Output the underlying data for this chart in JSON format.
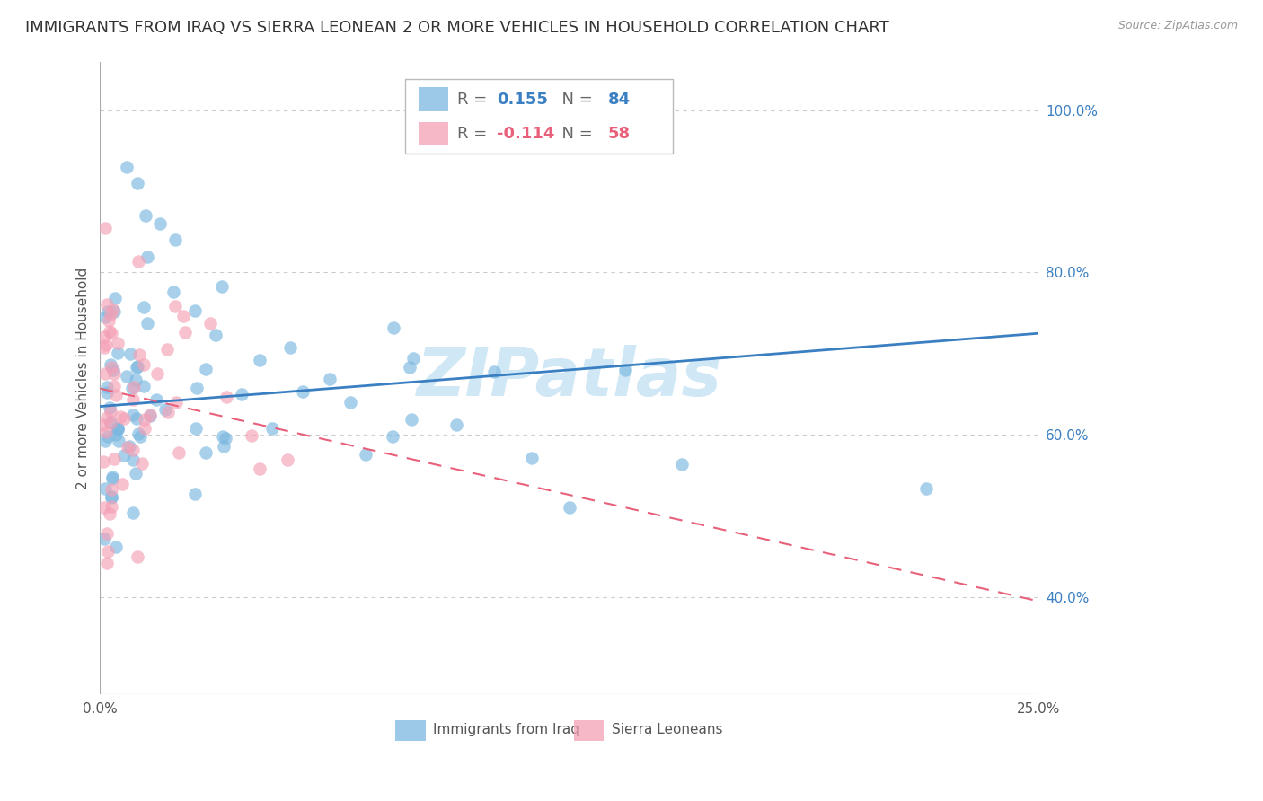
{
  "title": "IMMIGRANTS FROM IRAQ VS SIERRA LEONEAN 2 OR MORE VEHICLES IN HOUSEHOLD CORRELATION CHART",
  "source": "Source: ZipAtlas.com",
  "ylabel": "2 or more Vehicles in Household",
  "xlim": [
    0.0,
    0.25
  ],
  "ylim": [
    0.28,
    1.06
  ],
  "xticks": [
    0.0,
    0.05,
    0.1,
    0.15,
    0.2,
    0.25
  ],
  "xticklabels": [
    "0.0%",
    "",
    "",
    "",
    "",
    "25.0%"
  ],
  "yticks_right": [
    1.0,
    0.8,
    0.6,
    0.4
  ],
  "yticklabels_right": [
    "100.0%",
    "80.0%",
    "60.0%",
    "40.0%"
  ],
  "legend_iraq": "Immigrants from Iraq",
  "legend_sl": "Sierra Leoneans",
  "R_iraq": 0.155,
  "N_iraq": 84,
  "R_sl": -0.114,
  "N_sl": 58,
  "color_iraq": "#7bb8e0",
  "color_sl": "#f4a0b5",
  "line_color_iraq": "#3a7fc1",
  "line_color_sl": "#e8607a",
  "watermark": "ZIPatlas",
  "watermark_color": "#d0e8f5",
  "background_color": "#ffffff",
  "grid_color": "#cccccc",
  "title_fontsize": 13,
  "axis_label_fontsize": 11,
  "tick_fontsize": 11,
  "iraq_line_x": [
    0.0,
    0.25
  ],
  "iraq_line_y": [
    0.635,
    0.725
  ],
  "sl_line_x": [
    0.0,
    0.25
  ],
  "sl_line_y": [
    0.657,
    0.395
  ]
}
